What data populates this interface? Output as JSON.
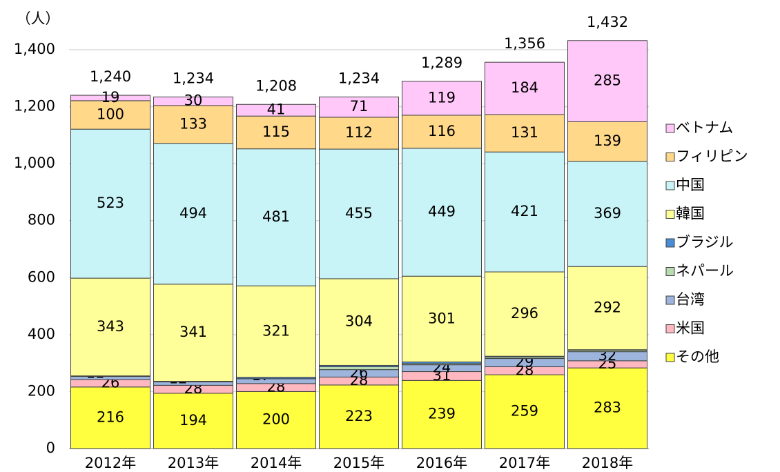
{
  "chart_data": {
    "type": "stacked_bar",
    "y_axis_label": "（人）",
    "categories": [
      "2012年",
      "2013年",
      "2014年",
      "2015年",
      "2016年",
      "2017年",
      "2018年"
    ],
    "series": [
      {
        "name": "その他",
        "color": "#ffff40",
        "values": [
          216,
          194,
          200,
          223,
          239,
          259,
          283
        ]
      },
      {
        "name": "米国",
        "color": "#ffb8c0",
        "values": [
          26,
          28,
          28,
          28,
          31,
          28,
          25
        ]
      },
      {
        "name": "台湾",
        "color": "#9db4dc",
        "values": [
          11,
          12,
          17,
          26,
          24,
          29,
          32
        ]
      },
      {
        "name": "ネパール",
        "color": "#b8dcb0",
        "values": [
          0,
          null,
          null,
          10,
          4,
          5,
          5
        ]
      },
      {
        "name": "ブラジル",
        "color": "#4a8cd6",
        "values": [
          2,
          2,
          5,
          5,
          6,
          3,
          2
        ],
        "value_labels": [
          null,
          null,
          null,
          null,
          null,
          null,
          null
        ]
      },
      {
        "name": "韓国",
        "color": "#ffff99",
        "values": [
          343,
          341,
          321,
          304,
          301,
          296,
          292
        ]
      },
      {
        "name": "中国",
        "color": "#c8f4f8",
        "values": [
          523,
          494,
          481,
          455,
          449,
          421,
          369
        ]
      },
      {
        "name": "フィリピン",
        "color": "#ffd88a",
        "values": [
          100,
          133,
          115,
          112,
          116,
          131,
          139
        ]
      },
      {
        "name": "ベトナム",
        "color": "#ffc8f8",
        "values": [
          19,
          30,
          41,
          71,
          119,
          184,
          285
        ]
      }
    ],
    "totals": [
      1240,
      1234,
      1208,
      1234,
      1289,
      1356,
      1432
    ],
    "total_labels": [
      "1,240",
      "1,234",
      "1,208",
      "1,234",
      "1,289",
      "1,356",
      "1,432"
    ],
    "ylim": [
      0,
      1400
    ],
    "yticks": [
      0,
      200,
      400,
      600,
      800,
      {
        "value": 1000,
        "label": "1,000"
      },
      {
        "value": 1200,
        "label": "1,200"
      },
      {
        "value": 1400,
        "label": "1,400"
      }
    ],
    "grid": true,
    "legend": "right"
  }
}
